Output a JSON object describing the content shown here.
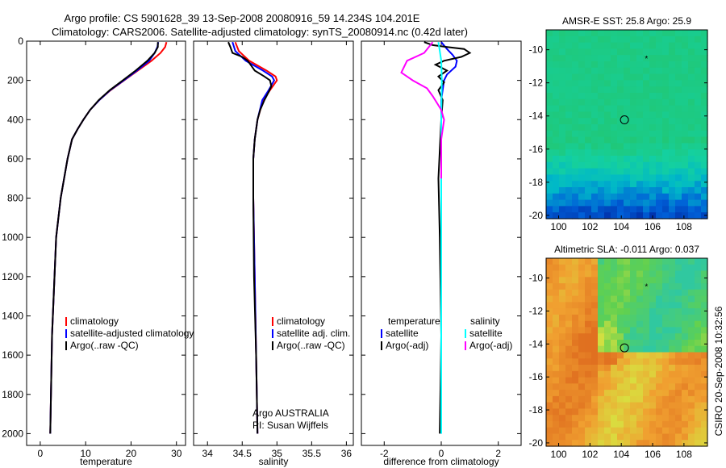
{
  "header": {
    "line1": "Argo profile: CS 5901628_39 13-Sep-2008 20080916_59 14.234S 104.201E",
    "line2": "Climatology: CARS2006. Satellite-adjusted climatology: synTS_20080914.nc (0.42d later)"
  },
  "side_text": "CSIRO 20-Sep-2008 10:32:56",
  "colors": {
    "climatology": "#ff0000",
    "satellite": "#0000ff",
    "argo": "#000000",
    "sat_diff": "#00ffff",
    "argo_sal_diff": "#ff00ff"
  },
  "chart_data": [
    {
      "type": "line",
      "xlabel": "temperature",
      "xlim": [
        -3,
        32
      ],
      "ylim": [
        2060,
        0
      ],
      "xticks": [
        0,
        10,
        20,
        30
      ],
      "yticks": [
        0,
        200,
        400,
        600,
        800,
        1000,
        1200,
        1400,
        1600,
        1800,
        2000
      ],
      "legend": [
        "climatology",
        "satellite-adjusted climatology",
        "Argo(..raw -QC)"
      ],
      "series": [
        {
          "name": "climatology",
          "color": "#ff0000",
          "x": [
            27.8,
            27.5,
            26.5,
            24.5,
            21.5,
            18.5,
            15.5,
            13.0,
            11.0,
            9.5,
            8.2,
            7.0,
            6.0,
            4.5,
            3.5,
            2.6,
            2.2
          ],
          "y": [
            5,
            30,
            60,
            100,
            150,
            200,
            250,
            300,
            350,
            400,
            450,
            500,
            600,
            800,
            1000,
            1500,
            2000
          ]
        },
        {
          "name": "satellite-adjusted climatology",
          "color": "#0000ff",
          "x": [
            26.0,
            25.8,
            25.2,
            24.0,
            21.3,
            18.4,
            15.4,
            13.0,
            11.0,
            9.5,
            8.2,
            7.0,
            6.0,
            4.5,
            3.5,
            2.6,
            2.2
          ],
          "y": [
            5,
            30,
            60,
            100,
            150,
            200,
            250,
            300,
            350,
            400,
            450,
            500,
            600,
            800,
            1000,
            1500,
            2000
          ]
        },
        {
          "name": "Argo(..raw -QC)",
          "color": "#000000",
          "x": [
            25.9,
            25.9,
            25.2,
            23.6,
            21.0,
            18.2,
            15.3,
            12.9,
            11.0,
            9.5,
            8.2,
            7.0,
            6.0,
            4.5,
            3.5,
            2.6,
            2.2
          ],
          "y": [
            5,
            30,
            60,
            100,
            150,
            200,
            250,
            300,
            350,
            400,
            450,
            500,
            600,
            800,
            1000,
            1500,
            2000
          ]
        }
      ]
    },
    {
      "type": "line",
      "xlabel": "salinity",
      "xlim": [
        33.8,
        36.1
      ],
      "ylim": [
        2060,
        0
      ],
      "xticks": [
        34,
        34.5,
        35,
        35.5,
        36
      ],
      "legend": [
        "climatology",
        "satellite adj. clim.",
        "Argo(..raw -QC)"
      ],
      "annotation": [
        "Argo AUSTRALIA",
        "PI: Susan Wijffels"
      ],
      "series": [
        {
          "name": "climatology",
          "color": "#ff0000",
          "x": [
            34.4,
            34.45,
            34.6,
            34.85,
            34.98,
            35.0,
            34.9,
            34.8,
            34.72,
            34.68,
            34.66,
            34.66,
            34.68,
            34.7,
            34.72
          ],
          "y": [
            5,
            50,
            100,
            150,
            180,
            200,
            250,
            300,
            400,
            500,
            600,
            800,
            1200,
            1600,
            2000
          ]
        },
        {
          "name": "satellite adj. clim.",
          "color": "#0000ff",
          "x": [
            34.36,
            34.4,
            34.55,
            34.8,
            34.93,
            34.96,
            34.88,
            34.79,
            34.72,
            34.68,
            34.66,
            34.66,
            34.68,
            34.7,
            34.72
          ],
          "y": [
            5,
            50,
            100,
            150,
            180,
            200,
            250,
            300,
            400,
            500,
            600,
            800,
            1200,
            1600,
            2000
          ]
        },
        {
          "name": "Argo(..raw -QC)",
          "color": "#000000",
          "x": [
            34.3,
            34.33,
            34.36,
            34.5,
            34.58,
            34.62,
            34.68,
            34.82,
            34.9,
            34.92,
            34.88,
            34.82,
            34.76,
            34.72,
            34.68,
            34.66,
            34.66,
            34.67,
            34.7,
            34.72
          ],
          "y": [
            5,
            30,
            60,
            80,
            100,
            120,
            150,
            180,
            200,
            230,
            260,
            300,
            350,
            400,
            500,
            600,
            800,
            1200,
            1600,
            2000
          ]
        }
      ]
    },
    {
      "type": "line",
      "xlabel": "difference from climatology",
      "xlim": [
        -2.8,
        2.8
      ],
      "ylim": [
        2060,
        0
      ],
      "xticks": [
        -2,
        0,
        2
      ],
      "legend_temperature": {
        "title": "temperature",
        "items": [
          "satellite",
          "Argo(-adj)"
        ]
      },
      "legend_salinity": {
        "title": "salinity",
        "items": [
          "satellite",
          "Argo(-adj)"
        ]
      },
      "series": [
        {
          "name": "temperature satellite",
          "color": "#0000ff",
          "x": [
            0.0,
            0.2,
            0.4,
            0.55,
            0.5,
            0.2,
            0.1,
            0.0,
            0.0,
            0.0,
            0.0
          ],
          "y": [
            5,
            40,
            70,
            100,
            130,
            170,
            200,
            300,
            500,
            1000,
            2000
          ]
        },
        {
          "name": "temperature Argo(-adj)",
          "color": "#000000",
          "x": [
            -0.6,
            -0.3,
            0.2,
            0.8,
            1.0,
            0.7,
            0.1,
            -0.2,
            0.2,
            -0.1,
            0.1,
            -0.1,
            0.05,
            0.0,
            -0.1,
            -0.05,
            0.0,
            -0.05
          ],
          "y": [
            5,
            20,
            30,
            40,
            60,
            80,
            100,
            120,
            150,
            180,
            210,
            250,
            300,
            400,
            700,
            1000,
            1500,
            2000
          ]
        },
        {
          "name": "salinity satellite",
          "color": "#00ffff",
          "x": [
            -0.1,
            -0.05,
            0.0,
            0.02,
            0.0,
            0.0,
            0.0,
            0.0
          ],
          "y": [
            5,
            50,
            100,
            200,
            400,
            800,
            1400,
            2000
          ]
        },
        {
          "name": "salinity Argo(-adj)",
          "color": "#ff00ff",
          "x": [
            -0.3,
            -0.6,
            -1.2,
            -1.4,
            -1.0,
            -0.5,
            -0.3,
            0.0,
            0.1,
            0.0,
            0.0
          ],
          "y": [
            5,
            60,
            100,
            160,
            200,
            240,
            280,
            350,
            400,
            500,
            700
          ]
        }
      ]
    },
    {
      "type": "heatmap",
      "title": "AMSR-E SST: 25.8 Argo: 25.9",
      "xlim": [
        99.2,
        109.5
      ],
      "ylim": [
        -20.2,
        -8.8
      ],
      "xticks": [
        100,
        102,
        104,
        106,
        108
      ],
      "yticks": [
        -10,
        -12,
        -14,
        -16,
        -18,
        -20
      ],
      "float_position": [
        104.201,
        -14.234
      ],
      "star_position": [
        105.6,
        -10.5
      ],
      "colors": [
        "#00209a",
        "#0060d8",
        "#00b8c8",
        "#14d0a0",
        "#20c878"
      ]
    },
    {
      "type": "heatmap",
      "title": "Altimetric SLA: -0.011 Argo: 0.037",
      "xlim": [
        99.2,
        109.5
      ],
      "ylim": [
        -20.2,
        -8.8
      ],
      "xticks": [
        100,
        102,
        104,
        106,
        108
      ],
      "yticks": [
        -10,
        -12,
        -14,
        -16,
        -18,
        -20
      ],
      "float_position": [
        104.201,
        -14.234
      ],
      "star_position": [
        105.6,
        -10.5
      ],
      "colors": [
        "#e07020",
        "#f0a030",
        "#d8e040",
        "#60d050",
        "#30c8a0"
      ]
    }
  ]
}
